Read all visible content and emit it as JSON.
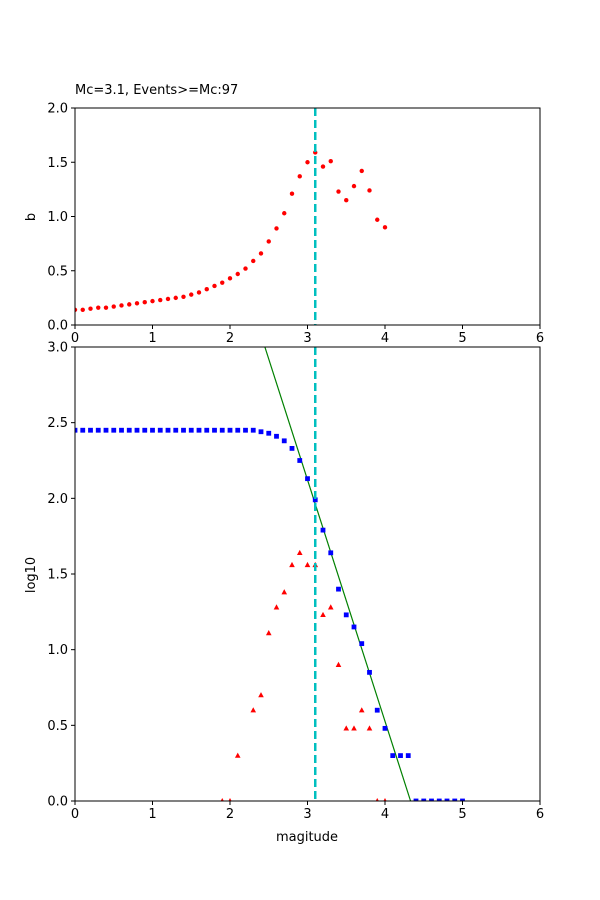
{
  "chart_data": [
    {
      "type": "scatter",
      "title": "Mc=3.1, Events>=Mc:97",
      "xlabel": "",
      "ylabel": "b",
      "xlim": [
        0,
        6
      ],
      "ylim": [
        0,
        2.0
      ],
      "xticks": [
        "0",
        "1",
        "2",
        "3",
        "4",
        "5",
        "6"
      ],
      "yticks": [
        "0.0",
        "0.5",
        "1.0",
        "1.5",
        "2.0"
      ],
      "grid": false,
      "colors": {
        "points": "#ff0000",
        "mc_line": "#00bfbf"
      },
      "mc_line": 3.1,
      "series": [
        {
          "marker": "circle",
          "x": [
            0.0,
            0.1,
            0.2,
            0.3,
            0.4,
            0.5,
            0.6,
            0.7,
            0.8,
            0.9,
            1.0,
            1.1,
            1.2,
            1.3,
            1.4,
            1.5,
            1.6,
            1.7,
            1.8,
            1.9,
            2.0,
            2.1,
            2.2,
            2.3,
            2.4,
            2.5,
            2.6,
            2.7,
            2.8,
            2.9,
            3.0,
            3.1,
            3.2,
            3.3,
            3.4,
            3.5,
            3.6,
            3.7,
            3.8,
            3.9,
            4.0
          ],
          "y": [
            0.14,
            0.14,
            0.15,
            0.16,
            0.16,
            0.17,
            0.18,
            0.19,
            0.2,
            0.21,
            0.22,
            0.23,
            0.24,
            0.25,
            0.26,
            0.28,
            0.3,
            0.33,
            0.36,
            0.39,
            0.43,
            0.47,
            0.52,
            0.59,
            0.66,
            0.77,
            0.89,
            1.03,
            1.21,
            1.37,
            1.5,
            1.59,
            1.46,
            1.51,
            1.23,
            1.15,
            1.28,
            1.42,
            1.24,
            0.97,
            0.9
          ]
        }
      ]
    },
    {
      "type": "scatter",
      "title": "",
      "xlabel": "magitude",
      "ylabel": "log10",
      "xlim": [
        0,
        6
      ],
      "ylim": [
        0,
        3.0
      ],
      "xticks": [
        "0",
        "1",
        "2",
        "3",
        "4",
        "5",
        "6"
      ],
      "yticks": [
        "0.0",
        "0.5",
        "1.0",
        "1.5",
        "2.0",
        "2.5",
        "3.0"
      ],
      "grid": false,
      "colors": {
        "cumulative": "#0000ff",
        "incremental": "#ff0000",
        "fit": "#008000",
        "mc_line": "#00bfbf"
      },
      "mc_line": 3.1,
      "fit_line": {
        "x": [
          2.45,
          4.33
        ],
        "y": [
          3.0,
          0.0
        ]
      },
      "series": [
        {
          "marker": "square",
          "x": [
            0.0,
            0.1,
            0.2,
            0.3,
            0.4,
            0.5,
            0.6,
            0.7,
            0.8,
            0.9,
            1.0,
            1.1,
            1.2,
            1.3,
            1.4,
            1.5,
            1.6,
            1.7,
            1.8,
            1.9,
            2.0,
            2.1,
            2.2,
            2.3,
            2.4,
            2.5,
            2.6,
            2.7,
            2.8,
            2.9,
            3.0,
            3.1,
            3.2,
            3.3,
            3.4,
            3.5,
            3.6,
            3.7,
            3.8,
            3.9,
            4.0,
            4.1,
            4.2,
            4.3,
            4.4,
            4.5,
            4.6,
            4.7,
            4.8,
            4.9,
            5.0
          ],
          "y": [
            2.45,
            2.45,
            2.45,
            2.45,
            2.45,
            2.45,
            2.45,
            2.45,
            2.45,
            2.45,
            2.45,
            2.45,
            2.45,
            2.45,
            2.45,
            2.45,
            2.45,
            2.45,
            2.45,
            2.45,
            2.45,
            2.45,
            2.45,
            2.45,
            2.44,
            2.43,
            2.41,
            2.38,
            2.33,
            2.25,
            2.13,
            1.99,
            1.79,
            1.64,
            1.4,
            1.23,
            1.15,
            1.04,
            0.85,
            0.6,
            0.48,
            0.3,
            0.3,
            0.3,
            0.0,
            0.0,
            0.0,
            0.0,
            0.0,
            0.0,
            0.0
          ]
        },
        {
          "marker": "triangle",
          "x": [
            1.9,
            2.0,
            2.1,
            2.3,
            2.4,
            2.5,
            2.6,
            2.7,
            2.8,
            2.9,
            3.0,
            3.1,
            3.2,
            3.3,
            3.4,
            3.5,
            3.6,
            3.7,
            3.8,
            3.9,
            4.0
          ],
          "y": [
            0.0,
            0.0,
            0.3,
            0.6,
            0.7,
            1.11,
            1.28,
            1.38,
            1.56,
            1.64,
            1.56,
            1.56,
            1.23,
            1.28,
            0.9,
            0.48,
            0.48,
            0.6,
            0.48,
            0.0,
            0.0
          ]
        }
      ]
    }
  ]
}
